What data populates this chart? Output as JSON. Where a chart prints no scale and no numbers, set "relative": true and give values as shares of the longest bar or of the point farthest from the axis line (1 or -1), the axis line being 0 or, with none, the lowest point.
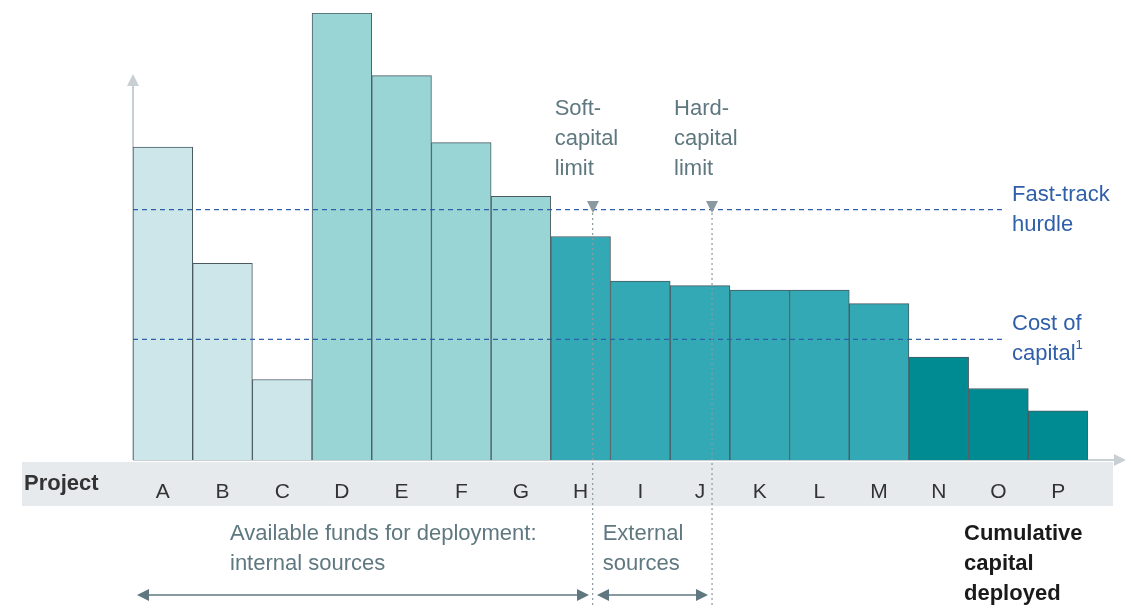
{
  "chart_data": {
    "type": "bar",
    "relative": true,
    "xlabel": "Cumulative capital deployed",
    "categories": [
      "A",
      "B",
      "C",
      "D",
      "E",
      "F",
      "G",
      "H",
      "I",
      "J",
      "K",
      "L",
      "M",
      "N",
      "O",
      "P"
    ],
    "values": [
      0.7,
      0.44,
      0.18,
      1,
      0.86,
      0.71,
      0.59,
      0.5,
      0.4,
      0.39,
      0.38,
      0.38,
      0.35,
      0.23,
      0.16,
      0.11
    ],
    "colors": [
      "#cce6ea",
      "#cce6ea",
      "#cce6ea",
      "#9ad5d6",
      "#9ad5d6",
      "#9ad5d6",
      "#9ad5d6",
      "#33a9b5",
      "#33a9b5",
      "#33a9b5",
      "#33a9b5",
      "#33a9b5",
      "#33a9b5",
      "#008b92",
      "#008b92",
      "#008b92"
    ],
    "ref_lines": [
      {
        "axis": "y",
        "value": 0.56,
        "label": "Fast-track hurdle",
        "color": "#2f5fa8",
        "line_style": "dashed"
      },
      {
        "axis": "y",
        "value": 0.27,
        "label": "Cost of capital$^{1}$",
        "color": "#2f5fa8",
        "line_style": "dashed"
      },
      {
        "axis": "x",
        "value": "H",
        "label": "Soft-capital limit",
        "color": "#8a9aa0",
        "line_style": "dotted"
      },
      {
        "axis": "x",
        "value": "J",
        "label": "Hard-capital limit",
        "color": "#8a9aa0",
        "line_style": "dotted"
      }
    ],
    "annotations": [
      "Project",
      "Available funds for deployment: internal sources",
      "External sources"
    ],
    "legend": false
  }
}
